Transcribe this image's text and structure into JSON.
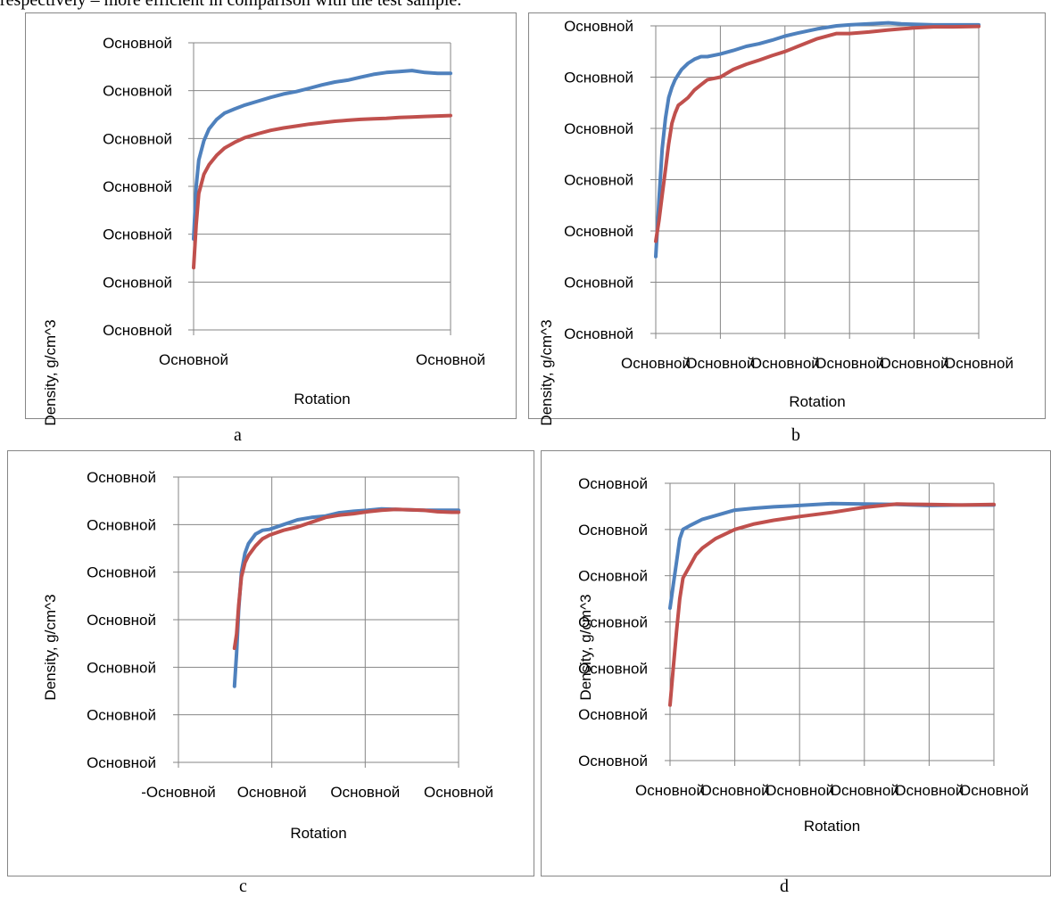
{
  "intro_text": "respectively – more efficient in comparison with the test sample.",
  "chart_data": [
    {
      "type": "line",
      "caption": "a",
      "xlabel": "Rotation",
      "ylabel": "Density, g/cm^3",
      "ytick_labels": [
        "Основной",
        "Основной",
        "Основной",
        "Основной",
        "Основной",
        "Основной",
        "Основной"
      ],
      "xtick_labels": [
        "Основной",
        "Основной"
      ],
      "xlim": [
        0,
        1
      ],
      "ylim": [
        0,
        6
      ],
      "grid": true,
      "series": [
        {
          "color": "#4f81bd",
          "x": [
            0,
            0.01,
            0.02,
            0.04,
            0.06,
            0.09,
            0.12,
            0.16,
            0.2,
            0.25,
            0.3,
            0.35,
            0.4,
            0.45,
            0.5,
            0.55,
            0.6,
            0.65,
            0.7,
            0.75,
            0.8,
            0.85,
            0.9,
            0.95,
            1.0
          ],
          "y": [
            1.9,
            3.0,
            3.55,
            3.95,
            4.2,
            4.4,
            4.53,
            4.62,
            4.7,
            4.78,
            4.86,
            4.93,
            4.98,
            5.05,
            5.12,
            5.18,
            5.22,
            5.28,
            5.34,
            5.38,
            5.4,
            5.42,
            5.38,
            5.36,
            5.36
          ]
        },
        {
          "color": "#c0504d",
          "x": [
            0,
            0.01,
            0.02,
            0.04,
            0.06,
            0.09,
            0.12,
            0.16,
            0.2,
            0.25,
            0.3,
            0.35,
            0.4,
            0.45,
            0.5,
            0.55,
            0.6,
            0.65,
            0.7,
            0.75,
            0.8,
            0.85,
            0.9,
            0.95,
            1.0
          ],
          "y": [
            1.3,
            2.2,
            2.85,
            3.25,
            3.45,
            3.65,
            3.8,
            3.92,
            4.02,
            4.1,
            4.17,
            4.22,
            4.26,
            4.3,
            4.33,
            4.36,
            4.38,
            4.4,
            4.41,
            4.42,
            4.44,
            4.45,
            4.46,
            4.47,
            4.48
          ]
        }
      ]
    },
    {
      "type": "line",
      "caption": "b",
      "xlabel": "Rotation",
      "ylabel": "Density, g/cm^3",
      "ytick_labels": [
        "Основной",
        "Основной",
        "Основной",
        "Основной",
        "Основной",
        "Основной",
        "Основной"
      ],
      "xtick_labels": [
        "Основной",
        "Основной",
        "Основной",
        "Основной",
        "Основной",
        "Основной"
      ],
      "xlim": [
        0,
        5
      ],
      "ylim": [
        0,
        6
      ],
      "grid": true,
      "series": [
        {
          "color": "#4f81bd",
          "x": [
            0,
            0.05,
            0.1,
            0.15,
            0.2,
            0.25,
            0.3,
            0.35,
            0.4,
            0.5,
            0.6,
            0.7,
            0.8,
            1.0,
            1.2,
            1.4,
            1.6,
            1.8,
            2.0,
            2.2,
            2.5,
            2.8,
            3.0,
            3.3,
            3.6,
            3.8,
            4.0,
            4.3,
            4.6,
            5.0
          ],
          "y": [
            1.5,
            2.6,
            3.6,
            4.2,
            4.6,
            4.8,
            4.95,
            5.05,
            5.15,
            5.27,
            5.35,
            5.4,
            5.4,
            5.45,
            5.52,
            5.6,
            5.65,
            5.72,
            5.8,
            5.86,
            5.94,
            6.0,
            6.02,
            6.04,
            6.06,
            6.04,
            6.03,
            6.02,
            6.02,
            6.02
          ]
        },
        {
          "color": "#c0504d",
          "x": [
            0,
            0.05,
            0.1,
            0.15,
            0.2,
            0.25,
            0.3,
            0.35,
            0.4,
            0.5,
            0.6,
            0.7,
            0.8,
            1.0,
            1.2,
            1.4,
            1.6,
            1.8,
            2.0,
            2.2,
            2.5,
            2.8,
            3.0,
            3.3,
            3.6,
            3.8,
            4.0,
            4.3,
            4.6,
            5.0
          ],
          "y": [
            1.8,
            2.2,
            2.7,
            3.2,
            3.7,
            4.1,
            4.3,
            4.45,
            4.5,
            4.6,
            4.75,
            4.85,
            4.95,
            5.0,
            5.15,
            5.25,
            5.33,
            5.42,
            5.5,
            5.6,
            5.75,
            5.85,
            5.85,
            5.88,
            5.92,
            5.94,
            5.96,
            5.98,
            5.98,
            5.99
          ]
        }
      ]
    },
    {
      "type": "line",
      "caption": "c",
      "xlabel": "Rotation",
      "ylabel": "Density, g/cm^3",
      "ytick_labels": [
        "Основной",
        "Основной",
        "Основной",
        "Основной",
        "Основной",
        "Основной",
        "Основной"
      ],
      "xtick_labels": [
        "-Основной",
        "Основной",
        "Основной",
        "Основной"
      ],
      "xlim": [
        -1,
        3
      ],
      "ylim": [
        0,
        6
      ],
      "grid": true,
      "series": [
        {
          "color": "#4f81bd",
          "x": [
            -0.2,
            -0.17,
            -0.14,
            -0.1,
            -0.05,
            0,
            0.1,
            0.2,
            0.3,
            0.5,
            0.7,
            0.9,
            1.1,
            1.3,
            1.5,
            1.7,
            1.9,
            2.1,
            2.3,
            2.5,
            2.7,
            2.9,
            3.0
          ],
          "y": [
            1.6,
            2.3,
            3.2,
            4.0,
            4.4,
            4.6,
            4.8,
            4.88,
            4.9,
            5.0,
            5.1,
            5.15,
            5.18,
            5.25,
            5.28,
            5.3,
            5.33,
            5.32,
            5.31,
            5.3,
            5.3,
            5.3,
            5.3
          ]
        },
        {
          "color": "#c0504d",
          "x": [
            -0.2,
            -0.17,
            -0.14,
            -0.1,
            -0.05,
            0,
            0.1,
            0.2,
            0.3,
            0.5,
            0.7,
            0.9,
            1.1,
            1.3,
            1.5,
            1.7,
            1.9,
            2.1,
            2.3,
            2.5,
            2.7,
            2.9,
            3.0
          ],
          "y": [
            2.4,
            2.7,
            3.3,
            3.9,
            4.2,
            4.35,
            4.55,
            4.7,
            4.78,
            4.88,
            4.95,
            5.05,
            5.15,
            5.2,
            5.23,
            5.27,
            5.3,
            5.32,
            5.31,
            5.3,
            5.27,
            5.26,
            5.26
          ]
        }
      ]
    },
    {
      "type": "line",
      "caption": "d",
      "xlabel": "Rotation",
      "ylabel": "Density, g/cm^3",
      "ytick_labels": [
        "Основной",
        "Основной",
        "Основной",
        "Основной",
        "Основной",
        "Основной",
        "Основной"
      ],
      "xtick_labels": [
        "Основной",
        "Основной",
        "Основной",
        "Основной",
        "Основной",
        "Основной"
      ],
      "xlim": [
        0,
        5
      ],
      "ylim": [
        0,
        6
      ],
      "grid": true,
      "series": [
        {
          "color": "#4f81bd",
          "x": [
            0,
            0.05,
            0.1,
            0.15,
            0.2,
            0.3,
            0.4,
            0.5,
            0.7,
            1.0,
            1.3,
            1.6,
            2.0,
            2.5,
            3.0,
            3.5,
            4.0,
            4.5,
            5.0
          ],
          "y": [
            3.3,
            3.8,
            4.3,
            4.8,
            5.0,
            5.08,
            5.15,
            5.22,
            5.3,
            5.42,
            5.46,
            5.49,
            5.52,
            5.56,
            5.55,
            5.54,
            5.52,
            5.53,
            5.53
          ]
        },
        {
          "color": "#c0504d",
          "x": [
            0,
            0.05,
            0.1,
            0.15,
            0.2,
            0.3,
            0.4,
            0.5,
            0.7,
            1.0,
            1.3,
            1.6,
            2.0,
            2.5,
            3.0,
            3.5,
            4.0,
            4.5,
            5.0
          ],
          "y": [
            1.2,
            2.0,
            2.8,
            3.5,
            3.95,
            4.2,
            4.45,
            4.6,
            4.8,
            5.0,
            5.12,
            5.2,
            5.28,
            5.37,
            5.48,
            5.55,
            5.54,
            5.53,
            5.54
          ]
        }
      ]
    }
  ]
}
